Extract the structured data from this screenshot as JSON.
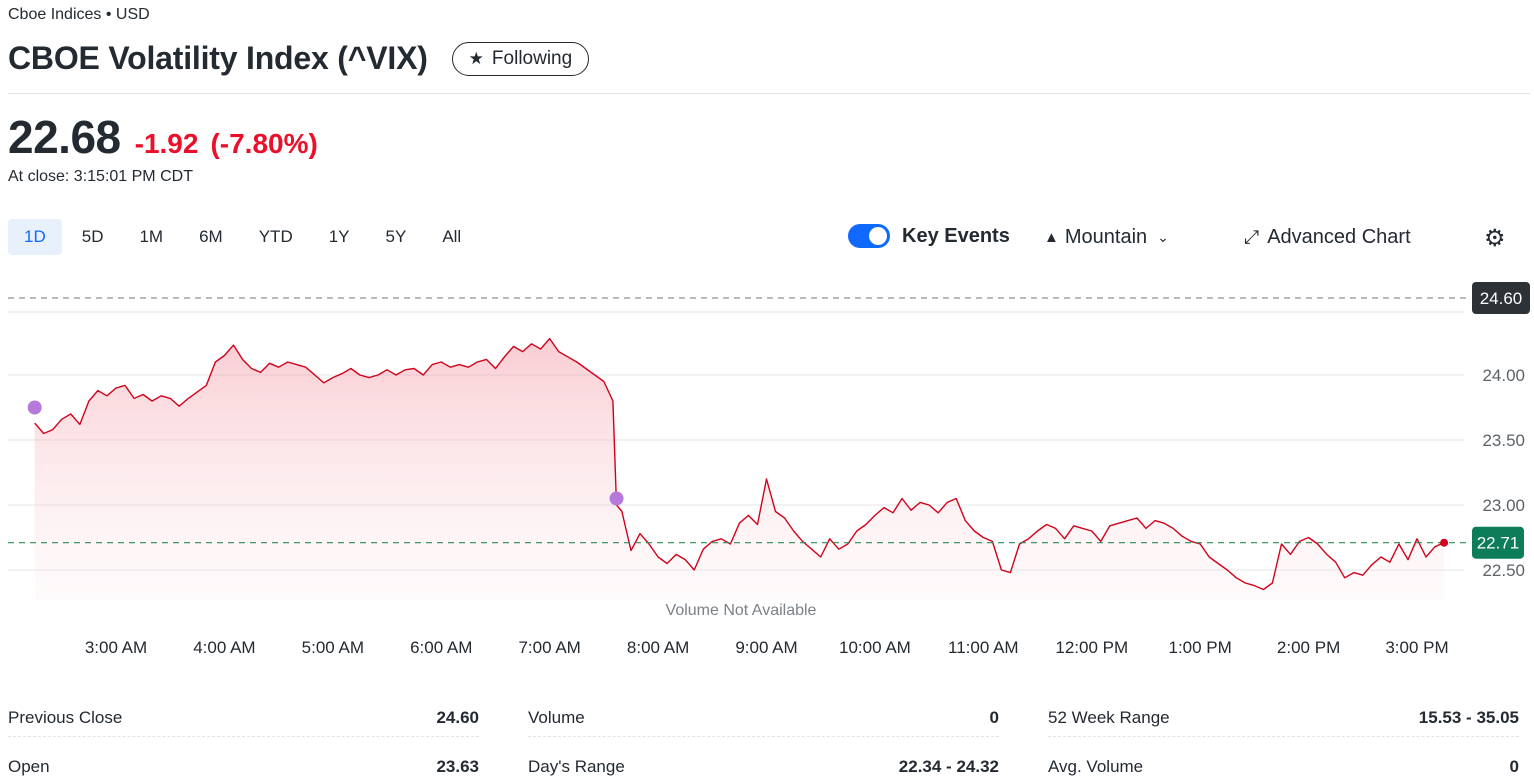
{
  "header": {
    "exchange": "Cboe Indices • USD",
    "title": "CBOE Volatility Index (^VIX)",
    "follow_label": "Following",
    "follow_icon": "star-icon"
  },
  "quote": {
    "price": "22.68",
    "change": "-1.92",
    "change_pct": "(-7.80%)",
    "close_time": "At close: 3:15:01 PM CDT",
    "colors": {
      "down": "#eb0f29",
      "text": "#232a31"
    }
  },
  "range_tabs": [
    {
      "label": "1D",
      "active": true
    },
    {
      "label": "5D",
      "active": false
    },
    {
      "label": "1M",
      "active": false
    },
    {
      "label": "6M",
      "active": false
    },
    {
      "label": "YTD",
      "active": false
    },
    {
      "label": "1Y",
      "active": false
    },
    {
      "label": "5Y",
      "active": false
    },
    {
      "label": "All",
      "active": false
    }
  ],
  "toolbar": {
    "key_events_label": "Key Events",
    "key_events_on": true,
    "chart_type_label": "Mountain",
    "advanced_chart_label": "Advanced Chart",
    "settings_icon": "gear-icon"
  },
  "chart_data": {
    "type": "area",
    "title": "",
    "xlabel": "",
    "ylabel": "",
    "x_ticks": [
      "3:00 AM",
      "4:00 AM",
      "5:00 AM",
      "6:00 AM",
      "7:00 AM",
      "8:00 AM",
      "9:00 AM",
      "10:00 AM",
      "11:00 AM",
      "12:00 PM",
      "1:00 PM",
      "2:00 PM",
      "3:00 PM"
    ],
    "y_ticks": [
      24.0,
      23.5,
      23.0,
      22.5
    ],
    "ylim": [
      22.25,
      24.85
    ],
    "xlim": [
      "2:15 AM",
      "3:35 PM"
    ],
    "previous_close": "24.60",
    "current_label": "22.71",
    "volume_note": "Volume Not Available",
    "grid": true,
    "series": [
      {
        "points": [
          [
            "2:15 AM",
            23.63
          ],
          [
            "2:20 AM",
            23.55
          ],
          [
            "2:25 AM",
            23.58
          ],
          [
            "2:30 AM",
            23.66
          ],
          [
            "2:35 AM",
            23.7
          ],
          [
            "2:40 AM",
            23.62
          ],
          [
            "2:45 AM",
            23.8
          ],
          [
            "2:50 AM",
            23.88
          ],
          [
            "2:55 AM",
            23.84
          ],
          [
            "3:00 AM",
            23.9
          ],
          [
            "3:05 AM",
            23.92
          ],
          [
            "3:10 AM",
            23.82
          ],
          [
            "3:15 AM",
            23.85
          ],
          [
            "3:20 AM",
            23.8
          ],
          [
            "3:25 AM",
            23.84
          ],
          [
            "3:30 AM",
            23.82
          ],
          [
            "3:35 AM",
            23.76
          ],
          [
            "3:40 AM",
            23.82
          ],
          [
            "3:45 AM",
            23.87
          ],
          [
            "3:50 AM",
            23.92
          ],
          [
            "3:55 AM",
            24.1
          ],
          [
            "4:00 AM",
            24.15
          ],
          [
            "4:05 AM",
            24.23
          ],
          [
            "4:10 AM",
            24.12
          ],
          [
            "4:15 AM",
            24.05
          ],
          [
            "4:20 AM",
            24.02
          ],
          [
            "4:25 AM",
            24.09
          ],
          [
            "4:30 AM",
            24.06
          ],
          [
            "4:35 AM",
            24.1
          ],
          [
            "4:40 AM",
            24.08
          ],
          [
            "4:45 AM",
            24.06
          ],
          [
            "4:50 AM",
            24.0
          ],
          [
            "4:55 AM",
            23.94
          ],
          [
            "5:00 AM",
            23.98
          ],
          [
            "5:05 AM",
            24.01
          ],
          [
            "5:10 AM",
            24.05
          ],
          [
            "5:15 AM",
            24.0
          ],
          [
            "5:20 AM",
            23.98
          ],
          [
            "5:25 AM",
            24.0
          ],
          [
            "5:30 AM",
            24.04
          ],
          [
            "5:35 AM",
            24.0
          ],
          [
            "5:40 AM",
            24.04
          ],
          [
            "5:45 AM",
            24.05
          ],
          [
            "5:50 AM",
            24.0
          ],
          [
            "5:55 AM",
            24.08
          ],
          [
            "6:00 AM",
            24.1
          ],
          [
            "6:05 AM",
            24.06
          ],
          [
            "6:10 AM",
            24.08
          ],
          [
            "6:15 AM",
            24.06
          ],
          [
            "6:20 AM",
            24.1
          ],
          [
            "6:25 AM",
            24.12
          ],
          [
            "6:30 AM",
            24.05
          ],
          [
            "6:35 AM",
            24.14
          ],
          [
            "6:40 AM",
            24.22
          ],
          [
            "6:45 AM",
            24.18
          ],
          [
            "6:50 AM",
            24.24
          ],
          [
            "6:55 AM",
            24.2
          ],
          [
            "7:00 AM",
            24.28
          ],
          [
            "7:05 AM",
            24.18
          ],
          [
            "7:10 AM",
            24.14
          ],
          [
            "7:15 AM",
            24.1
          ],
          [
            "7:20 AM",
            24.05
          ],
          [
            "7:25 AM",
            24.0
          ],
          [
            "7:30 AM",
            23.95
          ],
          [
            "7:35 AM",
            23.8
          ],
          [
            "7:37 AM",
            23.0
          ],
          [
            "7:40 AM",
            22.95
          ],
          [
            "7:45 AM",
            22.65
          ],
          [
            "7:50 AM",
            22.78
          ],
          [
            "7:55 AM",
            22.7
          ],
          [
            "8:00 AM",
            22.6
          ],
          [
            "8:05 AM",
            22.55
          ],
          [
            "8:10 AM",
            22.62
          ],
          [
            "8:15 AM",
            22.58
          ],
          [
            "8:20 AM",
            22.5
          ],
          [
            "8:25 AM",
            22.66
          ],
          [
            "8:30 AM",
            22.72
          ],
          [
            "8:35 AM",
            22.74
          ],
          [
            "8:40 AM",
            22.7
          ],
          [
            "8:45 AM",
            22.86
          ],
          [
            "8:50 AM",
            22.92
          ],
          [
            "8:55 AM",
            22.85
          ],
          [
            "9:00 AM",
            23.2
          ],
          [
            "9:05 AM",
            22.95
          ],
          [
            "9:10 AM",
            22.9
          ],
          [
            "9:15 AM",
            22.8
          ],
          [
            "9:20 AM",
            22.72
          ],
          [
            "9:25 AM",
            22.66
          ],
          [
            "9:30 AM",
            22.6
          ],
          [
            "9:35 AM",
            22.74
          ],
          [
            "9:40 AM",
            22.66
          ],
          [
            "9:45 AM",
            22.7
          ],
          [
            "9:50 AM",
            22.8
          ],
          [
            "9:55 AM",
            22.85
          ],
          [
            "10:00 AM",
            22.92
          ],
          [
            "10:05 AM",
            22.98
          ],
          [
            "10:10 AM",
            22.94
          ],
          [
            "10:15 AM",
            23.05
          ],
          [
            "10:20 AM",
            22.96
          ],
          [
            "10:25 AM",
            23.02
          ],
          [
            "10:30 AM",
            23.0
          ],
          [
            "10:35 AM",
            22.94
          ],
          [
            "10:40 AM",
            23.02
          ],
          [
            "10:45 AM",
            23.05
          ],
          [
            "10:50 AM",
            22.88
          ],
          [
            "10:55 AM",
            22.8
          ],
          [
            "11:00 AM",
            22.75
          ],
          [
            "11:05 AM",
            22.72
          ],
          [
            "11:10 AM",
            22.5
          ],
          [
            "11:15 AM",
            22.48
          ],
          [
            "11:20 AM",
            22.7
          ],
          [
            "11:25 AM",
            22.74
          ],
          [
            "11:30 AM",
            22.8
          ],
          [
            "11:35 AM",
            22.85
          ],
          [
            "11:40 AM",
            22.82
          ],
          [
            "11:45 AM",
            22.74
          ],
          [
            "11:50 AM",
            22.84
          ],
          [
            "11:55 AM",
            22.82
          ],
          [
            "12:00 PM",
            22.8
          ],
          [
            "12:05 PM",
            22.72
          ],
          [
            "12:10 PM",
            22.84
          ],
          [
            "12:15 PM",
            22.86
          ],
          [
            "12:20 PM",
            22.88
          ],
          [
            "12:25 PM",
            22.9
          ],
          [
            "12:30 PM",
            22.82
          ],
          [
            "12:35 PM",
            22.88
          ],
          [
            "12:40 PM",
            22.86
          ],
          [
            "12:45 PM",
            22.82
          ],
          [
            "12:50 PM",
            22.76
          ],
          [
            "12:55 PM",
            22.72
          ],
          [
            "1:00 PM",
            22.7
          ],
          [
            "1:05 PM",
            22.6
          ],
          [
            "1:10 PM",
            22.55
          ],
          [
            "1:15 PM",
            22.5
          ],
          [
            "1:20 PM",
            22.44
          ],
          [
            "1:25 PM",
            22.4
          ],
          [
            "1:30 PM",
            22.38
          ],
          [
            "1:35 PM",
            22.35
          ],
          [
            "1:40 PM",
            22.4
          ],
          [
            "1:45 PM",
            22.7
          ],
          [
            "1:50 PM",
            22.62
          ],
          [
            "1:55 PM",
            22.72
          ],
          [
            "2:00 PM",
            22.75
          ],
          [
            "2:05 PM",
            22.7
          ],
          [
            "2:10 PM",
            22.62
          ],
          [
            "2:15 PM",
            22.56
          ],
          [
            "2:20 PM",
            22.44
          ],
          [
            "2:25 PM",
            22.48
          ],
          [
            "2:30 PM",
            22.46
          ],
          [
            "2:35 PM",
            22.54
          ],
          [
            "2:40 PM",
            22.6
          ],
          [
            "2:45 PM",
            22.56
          ],
          [
            "2:50 PM",
            22.7
          ],
          [
            "2:55 PM",
            22.58
          ],
          [
            "3:00 PM",
            22.74
          ],
          [
            "3:05 PM",
            22.6
          ],
          [
            "3:10 PM",
            22.68
          ],
          [
            "3:15 PM",
            22.71
          ]
        ]
      }
    ],
    "events": [
      {
        "x": "2:15 AM",
        "y": 23.75
      },
      {
        "x": "7:37 AM",
        "y": 23.05
      }
    ]
  },
  "stats": {
    "columns": [
      [
        {
          "label": "Previous Close",
          "value": "24.60"
        },
        {
          "label": "Open",
          "value": "23.63"
        }
      ],
      [
        {
          "label": "Volume",
          "value": "0"
        },
        {
          "label": "Day's Range",
          "value": "22.34 - 24.32"
        }
      ],
      [
        {
          "label": "52 Week Range",
          "value": "15.53 - 35.05"
        },
        {
          "label": "Avg. Volume",
          "value": "0"
        }
      ]
    ]
  }
}
